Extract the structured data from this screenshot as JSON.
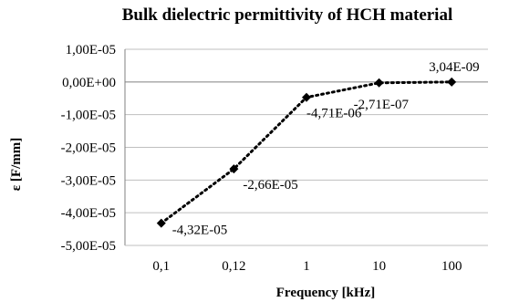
{
  "chart_data": {
    "type": "line",
    "title": "Bulk dielectric permittivity of HCH material",
    "xlabel": "Frequency [kHz]",
    "ylabel": "ε [F/mm]",
    "categories": [
      "0,1",
      "0,12",
      "1",
      "10",
      "100"
    ],
    "series": [
      {
        "values": [
          -4.32e-05,
          -2.66e-05,
          -4.71e-06,
          -2.71e-07,
          3.04e-09
        ],
        "data_labels": [
          "-4,32E-05",
          "-2,66E-05",
          "-4,71E-06",
          "-2,71E-07",
          "3,04E-09"
        ]
      }
    ],
    "ylim": [
      -5e-05,
      1e-05
    ],
    "y_ticks": [
      1e-05,
      0,
      -1e-05,
      -2e-05,
      -3e-05,
      -4e-05,
      -5e-05
    ],
    "y_tick_labels": [
      "1,00E-05",
      "0,00E+00",
      "-1,00E-05",
      "-2,00E-05",
      "-3,00E-05",
      "-4,00E-05",
      "-5,00E-05"
    ],
    "grid": true,
    "legend": "none",
    "colors": {
      "line": "#000000",
      "grid": "#bfbfbf",
      "axis": "#808080"
    },
    "marker": "diamond",
    "line_style": "dotted"
  }
}
